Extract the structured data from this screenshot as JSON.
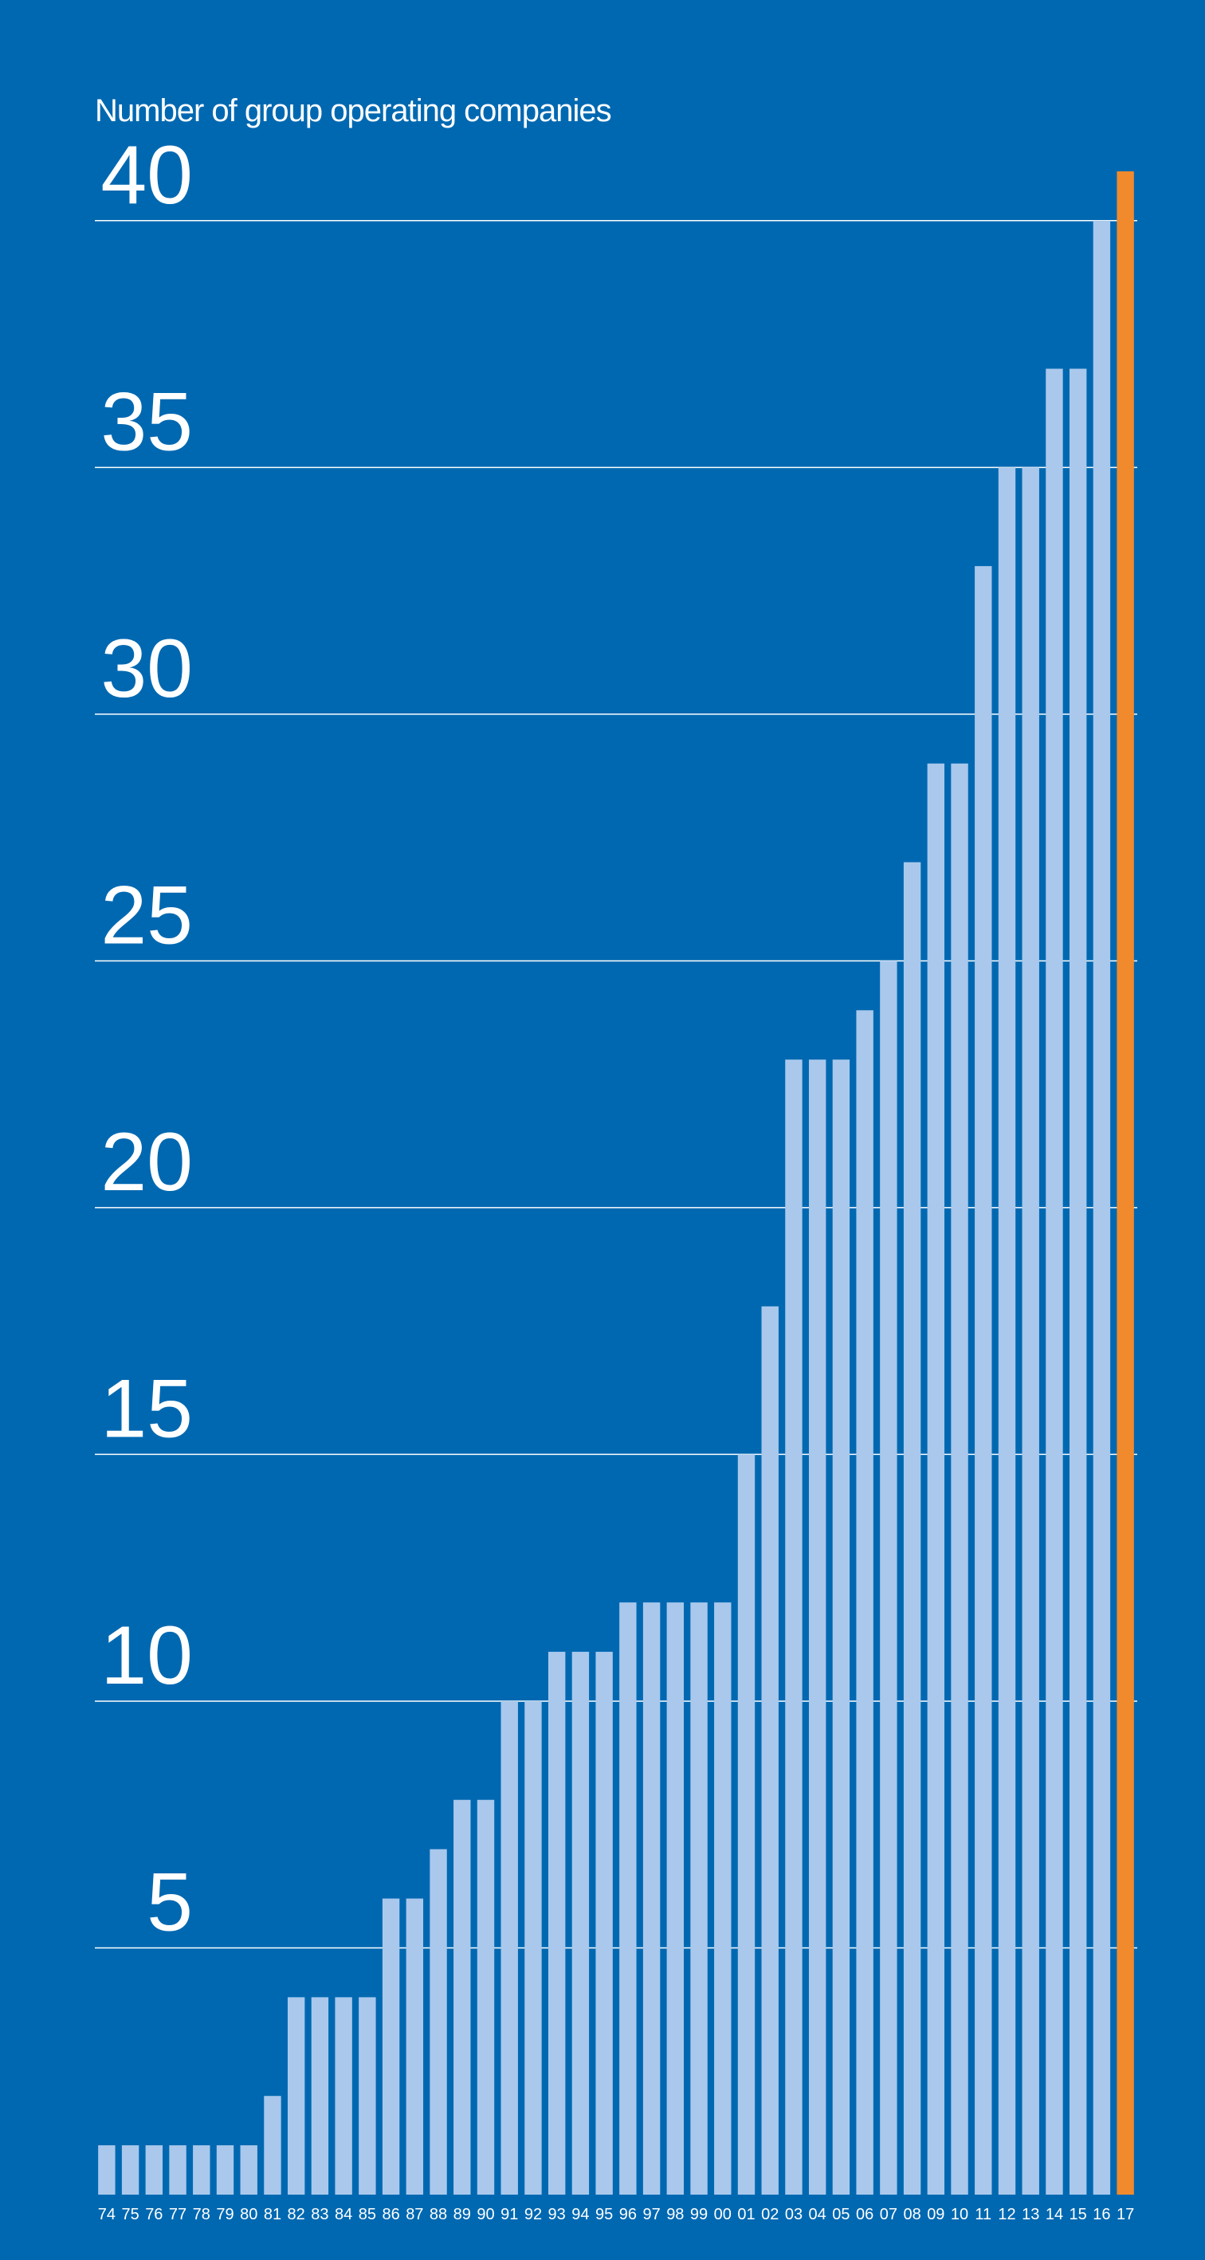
{
  "chart_data": {
    "type": "bar",
    "title": "Number of group operating companies",
    "categories": [
      "74",
      "75",
      "76",
      "77",
      "78",
      "79",
      "80",
      "81",
      "82",
      "83",
      "84",
      "85",
      "86",
      "87",
      "88",
      "89",
      "90",
      "91",
      "92",
      "93",
      "94",
      "95",
      "96",
      "97",
      "98",
      "99",
      "00",
      "01",
      "02",
      "03",
      "04",
      "05",
      "06",
      "07",
      "08",
      "09",
      "10",
      "11",
      "12",
      "13",
      "14",
      "15",
      "16",
      "17"
    ],
    "values": [
      1,
      1,
      1,
      1,
      1,
      1,
      1,
      2,
      4,
      4,
      4,
      4,
      6,
      6,
      7,
      8,
      8,
      10,
      10,
      11,
      11,
      11,
      12,
      12,
      12,
      12,
      12,
      15,
      18,
      23,
      23,
      23,
      24,
      25,
      27,
      29,
      29,
      33,
      35,
      35,
      37,
      37,
      40,
      41
    ],
    "colors": [
      "#a9c8ec",
      "#a9c8ec",
      "#a9c8ec",
      "#a9c8ec",
      "#a9c8ec",
      "#a9c8ec",
      "#a9c8ec",
      "#a9c8ec",
      "#a9c8ec",
      "#a9c8ec",
      "#a9c8ec",
      "#a9c8ec",
      "#a9c8ec",
      "#a9c8ec",
      "#a9c8ec",
      "#a9c8ec",
      "#a9c8ec",
      "#a9c8ec",
      "#a9c8ec",
      "#a9c8ec",
      "#a9c8ec",
      "#a9c8ec",
      "#a9c8ec",
      "#a9c8ec",
      "#a9c8ec",
      "#a9c8ec",
      "#a9c8ec",
      "#a9c8ec",
      "#a9c8ec",
      "#a9c8ec",
      "#a9c8ec",
      "#a9c8ec",
      "#a9c8ec",
      "#a9c8ec",
      "#a9c8ec",
      "#a9c8ec",
      "#a9c8ec",
      "#a9c8ec",
      "#a9c8ec",
      "#a9c8ec",
      "#a9c8ec",
      "#a9c8ec",
      "#a9c8ec",
      "#f08a2c"
    ],
    "ylim": [
      0,
      42
    ],
    "yticks": [
      5,
      10,
      15,
      20,
      25,
      30,
      35,
      40
    ],
    "grid": true
  }
}
